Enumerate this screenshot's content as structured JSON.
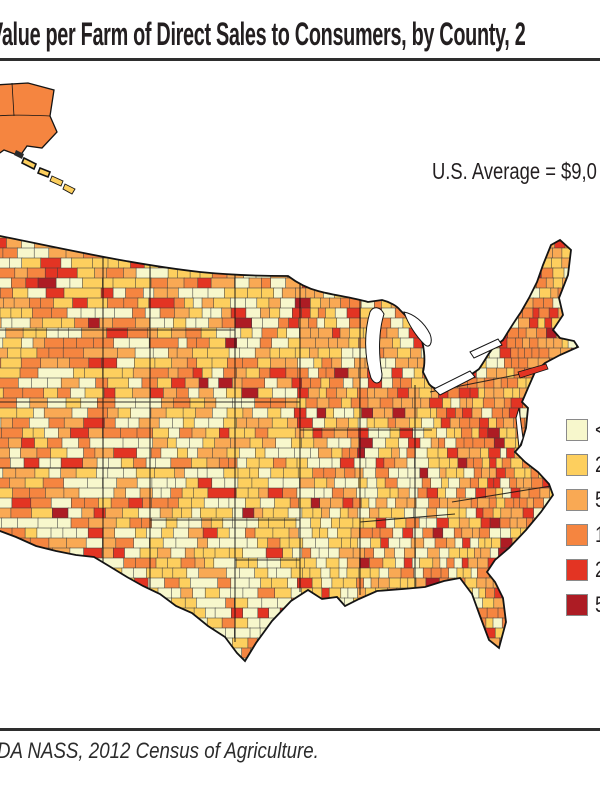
{
  "header": {
    "title": "Value per Farm of Direct Sales to Consumers, by County, 2",
    "us_average": "U.S. Average = $9,0"
  },
  "legend": {
    "items": [
      {
        "label": "<",
        "color": "#f7f7cc"
      },
      {
        "label": "2",
        "color": "#fdcf5e"
      },
      {
        "label": "5",
        "color": "#f9a954"
      },
      {
        "label": "1",
        "color": "#f58540"
      },
      {
        "label": "2",
        "color": "#e33423"
      },
      {
        "label": "5",
        "color": "#ad1c24"
      }
    ]
  },
  "map": {
    "type": "county-choropleth",
    "region": "United States counties with Alaska inset",
    "palette": [
      "#f7f7cc",
      "#fdcf5e",
      "#f9a954",
      "#f58540",
      "#e33423",
      "#ad1c24"
    ],
    "water_color": "#ffffff",
    "county_border_color": "#3f3f3f",
    "state_border_color": "#141414"
  },
  "footer": {
    "source": "DA NASS, 2012 Census of Agriculture."
  }
}
